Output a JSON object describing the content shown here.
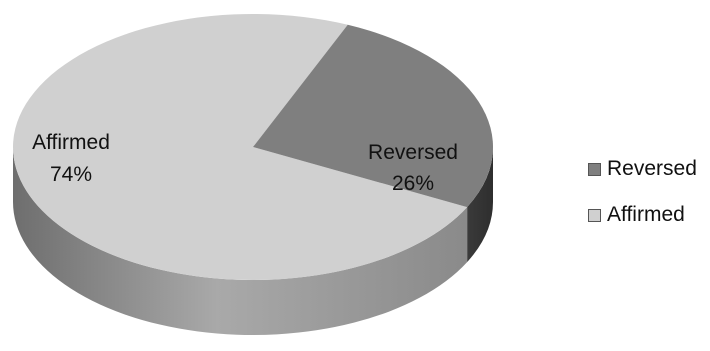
{
  "chart_data": {
    "type": "pie",
    "title": "",
    "slices": [
      {
        "label": "Reversed",
        "value": 26,
        "percent_label": "26%",
        "color": "#7f7f7f"
      },
      {
        "label": "Affirmed",
        "value": 74,
        "percent_label": "74%",
        "color": "#d0d0d0"
      }
    ],
    "legend": {
      "position": "right",
      "items": [
        {
          "label": "Reversed",
          "color": "#7f7f7f"
        },
        {
          "label": "Affirmed",
          "color": "#d0d0d0"
        }
      ]
    },
    "style": "3d"
  }
}
